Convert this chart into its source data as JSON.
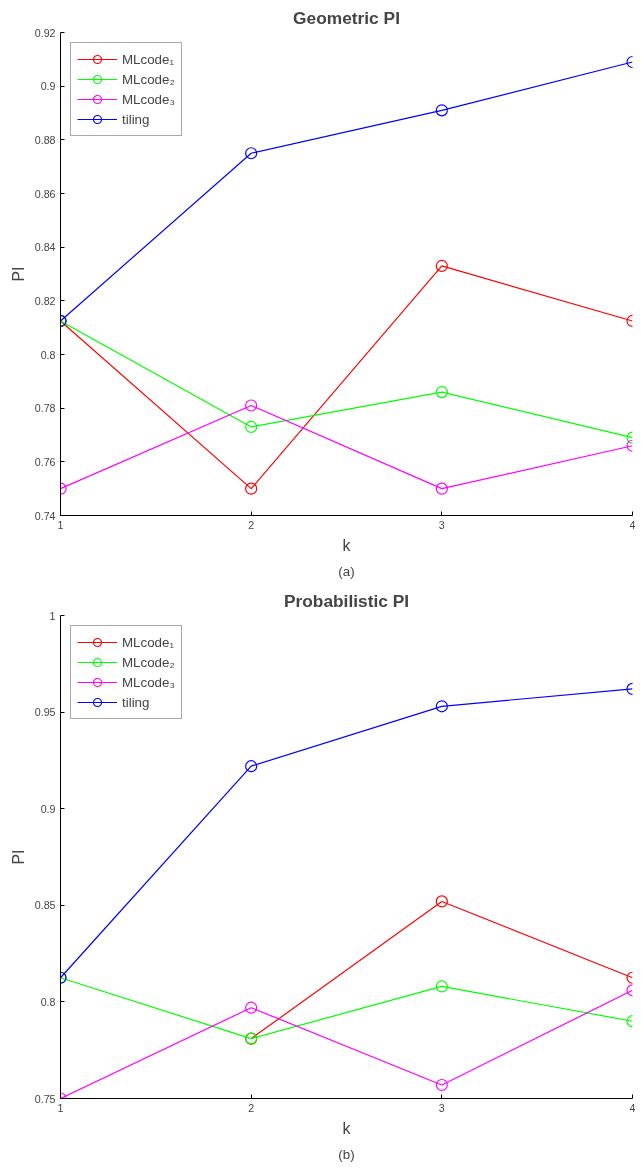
{
  "chart_data": [
    {
      "type": "line",
      "title": "Geometric PI",
      "xlabel": "k",
      "ylabel": "PI",
      "annotations": [
        "(a)"
      ],
      "x": [
        1,
        2,
        3,
        4
      ],
      "xlim": [
        1,
        4
      ],
      "xticks": [
        1,
        2,
        3,
        4
      ],
      "ylim": [
        0.74,
        0.92
      ],
      "yticks": [
        0.74,
        0.76,
        0.78,
        0.8,
        0.82,
        0.84,
        0.86,
        0.88,
        0.9,
        0.92
      ],
      "grid": false,
      "legend": "top left",
      "marker": "circle",
      "line_style": "solid",
      "series": [
        {
          "name": "MLcode₁",
          "color": "#ff0000",
          "values": [
            0.8125,
            0.75,
            0.833,
            0.8125
          ]
        },
        {
          "name": "MLcode₂",
          "color": "#00ff00",
          "values": [
            0.8125,
            0.773,
            0.786,
            0.769
          ]
        },
        {
          "name": "MLcode₃",
          "color": "#ff00ff",
          "values": [
            0.75,
            0.781,
            0.75,
            0.766
          ]
        },
        {
          "name": "tiling",
          "color": "#0000ff",
          "values": [
            0.8125,
            0.875,
            0.891,
            0.909
          ]
        }
      ]
    },
    {
      "type": "line",
      "title": "Probabilistic PI",
      "xlabel": "k",
      "ylabel": "PI",
      "annotations": [
        "(b)"
      ],
      "x": [
        1,
        2,
        3,
        4
      ],
      "xlim": [
        1,
        4
      ],
      "xticks": [
        1,
        2,
        3,
        4
      ],
      "ylim": [
        0.75,
        1
      ],
      "yticks": [
        0.75,
        0.8,
        0.85,
        0.9,
        0.95,
        1
      ],
      "grid": false,
      "legend": "top left",
      "marker": "circle",
      "line_style": "solid",
      "series": [
        {
          "name": "MLcode₁",
          "color": "#ff0000",
          "values": [
            null,
            0.781,
            0.852,
            0.8125
          ]
        },
        {
          "name": "MLcode₂",
          "color": "#00ff00",
          "values": [
            0.8125,
            0.781,
            0.808,
            0.79
          ]
        },
        {
          "name": "MLcode₃",
          "color": "#ff00ff",
          "values": [
            0.75,
            0.797,
            0.757,
            0.806
          ]
        },
        {
          "name": "tiling",
          "color": "#0000ff",
          "values": [
            0.8125,
            0.922,
            0.953,
            0.962
          ]
        }
      ]
    }
  ]
}
